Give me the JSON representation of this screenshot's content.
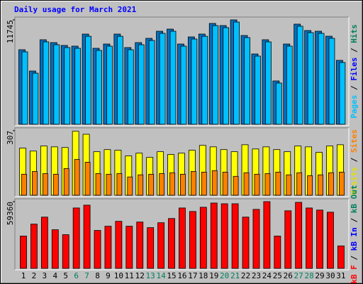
{
  "chart_data": [
    {
      "type": "bar",
      "title": "Daily usage for March 2021",
      "title_color": "#0000ff",
      "ylim": [
        0,
        11745
      ],
      "yticks": [
        11745
      ],
      "legend": [
        "Pages",
        "Files",
        "Hits"
      ],
      "legend_colors": [
        "#00c0ff",
        "#0000ff",
        "#00805c"
      ],
      "legend_separator": "/",
      "series": [
        {
          "name": "Files",
          "color": "#0070c0",
          "values": [
            8389,
            5992,
            9508,
            9188,
            8869,
            8789,
            10147,
            8549,
            9028,
            10147,
            8629,
            9188,
            9668,
            10467,
            10706,
            9028,
            9827,
            10147,
            11345,
            11106,
            11745,
            9987,
            7910,
            9508,
            4874,
            9028,
            11266,
            10547,
            10467,
            9907,
            7191
          ]
        },
        {
          "name": "Pages",
          "color": "#00c0ff",
          "values": [
            8150,
            5750,
            9270,
            8950,
            8630,
            8550,
            9900,
            8310,
            8790,
            9900,
            8390,
            8950,
            9430,
            10230,
            10470,
            8790,
            9590,
            9900,
            11100,
            10870,
            11500,
            9750,
            7670,
            9270,
            4640,
            8790,
            11030,
            10310,
            10230,
            9670,
            6950
          ]
        }
      ]
    },
    {
      "type": "bar",
      "ylim": [
        0,
        307
      ],
      "yticks": [
        307
      ],
      "legend": [
        "Visits",
        "Sites"
      ],
      "legend_colors": [
        "#e0e000",
        "#ff8000"
      ],
      "legend_separator": "/",
      "series": [
        {
          "name": "Visits",
          "color": "#ffff00",
          "values": [
            224,
            210,
            234,
            230,
            227,
            304,
            290,
            207,
            217,
            214,
            187,
            200,
            180,
            207,
            194,
            200,
            214,
            237,
            230,
            217,
            207,
            240,
            220,
            230,
            217,
            207,
            234,
            230,
            204,
            234,
            240
          ]
        },
        {
          "name": "Sites",
          "color": "#ff8000",
          "values": [
            100,
            113,
            103,
            100,
            127,
            170,
            157,
            103,
            100,
            103,
            87,
            97,
            100,
            103,
            107,
            100,
            113,
            110,
            117,
            110,
            90,
            107,
            100,
            103,
            110,
            97,
            107,
            93,
            97,
            107,
            110
          ]
        }
      ]
    },
    {
      "type": "bar",
      "ylim": [
        0,
        59360
      ],
      "yticks": [
        59360
      ],
      "legend": [
        "kB F",
        "kB In",
        "kB Out"
      ],
      "legend_colors": [
        "#ff0000",
        "#0000ff",
        "#00805c"
      ],
      "legend_separator": "/",
      "categories": [
        "1",
        "2",
        "3",
        "4",
        "5",
        "6",
        "7",
        "8",
        "9",
        "10",
        "11",
        "12",
        "13",
        "14",
        "15",
        "16",
        "17",
        "18",
        "19",
        "20",
        "21",
        "22",
        "23",
        "24",
        "25",
        "26",
        "27",
        "28",
        "29",
        "30",
        "31"
      ],
      "category_colors": [
        "#000000",
        "#000000",
        "#000000",
        "#000000",
        "#000000",
        "#00805c",
        "#00805c",
        "#000000",
        "#000000",
        "#000000",
        "#000000",
        "#000000",
        "#00805c",
        "#00805c",
        "#000000",
        "#000000",
        "#000000",
        "#000000",
        "#000000",
        "#00805c",
        "#00805c",
        "#000000",
        "#000000",
        "#000000",
        "#000000",
        "#000000",
        "#00805c",
        "#00805c",
        "#000000",
        "#000000",
        "#000000"
      ],
      "series": [
        {
          "name": "kB F",
          "color": "#ff0000",
          "values": [
            28743,
            39365,
            45614,
            34366,
            29992,
            53736,
            56236,
            33741,
            37491,
            41864,
            37491,
            41240,
            36241,
            40615,
            44364,
            53736,
            50612,
            54361,
            58110,
            57485,
            57485,
            45614,
            52486,
            59360,
            28743,
            51237,
            58735,
            53736,
            51862,
            49987,
            19995
          ]
        }
      ]
    }
  ]
}
